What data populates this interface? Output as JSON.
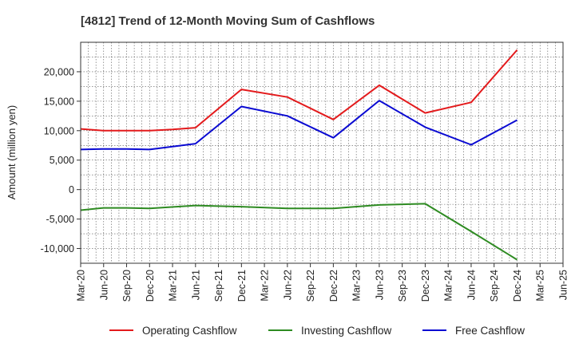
{
  "chart_data": {
    "type": "line",
    "title": "[4812]  Trend of 12-Month Moving Sum of Cashflows",
    "xlabel": "",
    "ylabel": "Amount (million yen)",
    "categories": [
      "Mar-20",
      "Jun-20",
      "Sep-20",
      "Dec-20",
      "Mar-21",
      "Jun-21",
      "Sep-21",
      "Dec-21",
      "Mar-22",
      "Jun-22",
      "Sep-22",
      "Dec-22",
      "Mar-23",
      "Jun-23",
      "Sep-23",
      "Dec-23",
      "Mar-24",
      "Jun-24",
      "Sep-24",
      "Dec-24",
      "Mar-25",
      "Jun-25"
    ],
    "ylim": [
      -12500,
      25000
    ],
    "yticks": [
      -10000,
      -5000,
      0,
      5000,
      10000,
      15000,
      20000
    ],
    "ytick_labels": [
      "-10,000",
      "-5,000",
      "0",
      "5,000",
      "10,000",
      "15,000",
      "20,000"
    ],
    "grid": true,
    "legend_position": "bottom",
    "series": [
      {
        "name": "Operating Cashflow",
        "color": "#e31a1c",
        "values": [
          10300,
          10000,
          10000,
          10000,
          10200,
          10500,
          null,
          17000,
          null,
          15700,
          null,
          11900,
          null,
          17700,
          null,
          13000,
          null,
          14800,
          null,
          23700,
          null,
          null
        ]
      },
      {
        "name": "Investing Cashflow",
        "color": "#2e8b22",
        "values": [
          -3500,
          -3100,
          -3100,
          -3200,
          null,
          -2700,
          null,
          -2900,
          null,
          -3200,
          null,
          -3200,
          null,
          -2600,
          null,
          -2400,
          null,
          -7100,
          null,
          -11900,
          null,
          null
        ]
      },
      {
        "name": "Free Cashflow",
        "color": "#0a0ad2",
        "values": [
          6800,
          6900,
          6900,
          6800,
          null,
          7800,
          null,
          14100,
          null,
          12500,
          null,
          8800,
          null,
          15100,
          null,
          10600,
          null,
          7600,
          null,
          11800,
          null,
          null
        ]
      }
    ]
  }
}
